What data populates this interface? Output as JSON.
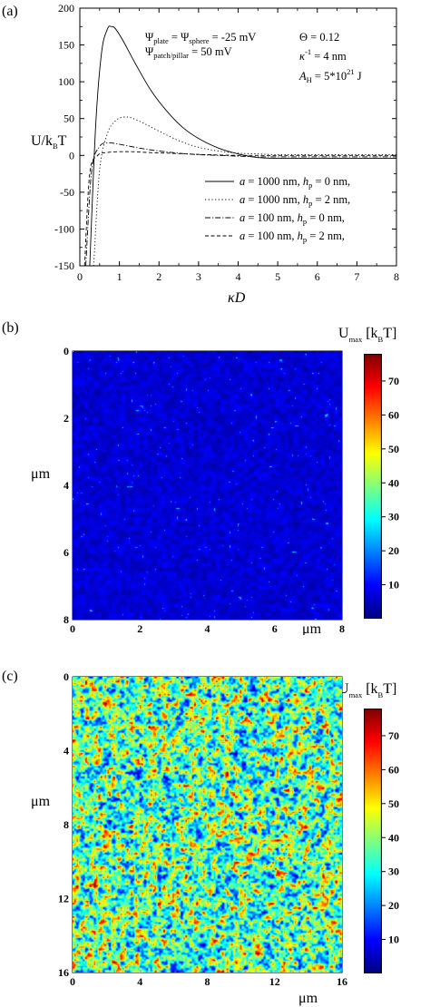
{
  "chart_data": [
    {
      "type": "line",
      "panel_label": "(a)",
      "xlabel_main": "κ",
      "xlabel_italic": "D",
      "ylabel_main": "U/k",
      "ylabel_sub": "B",
      "ylabel_end": "T",
      "xlim": [
        0,
        8
      ],
      "ylim": [
        -150,
        200
      ],
      "x_ticks": [
        "0",
        "1",
        "2",
        "3",
        "4",
        "5",
        "6",
        "7",
        "8"
      ],
      "y_ticks": [
        "200",
        "150",
        "100",
        "50",
        "0",
        "-50",
        "-100",
        "-150"
      ],
      "annotations": {
        "psi_line1_pre": "Ψ",
        "psi_line1_sub1": "plate",
        "psi_line1_mid": " = Ψ",
        "psi_line1_sub2": "sphere",
        "psi_line1_post": " = -25 mV",
        "psi_line2_pre": "Ψ",
        "psi_line2_sub": "patch/pillar",
        "psi_line2_post": " = 50 mV",
        "theta": "Θ = 0.12",
        "kappa_pre": "κ",
        "kappa_sup": "-1",
        "kappa_post": " = 4 nm",
        "ah_pre": "A",
        "ah_sub": "H",
        "ah_mid": " = 5*10",
        "ah_sup": "21",
        "ah_post": " J"
      },
      "series": [
        {
          "legend_a": "a",
          "legend_a_val": " = 1000 nm,  ",
          "legend_h": "h",
          "legend_hsub": "p",
          "legend_h_val": " = 0 nm,",
          "style": "solid",
          "x": [
            0.25,
            0.4,
            0.55,
            0.7,
            0.8,
            0.9,
            1.1,
            1.4,
            1.8,
            2.2,
            2.6,
            3.0,
            3.5,
            4.0,
            4.5,
            5.0,
            6.0,
            7.0,
            8.0
          ],
          "y": [
            -150,
            40,
            140,
            172,
            175,
            172,
            155,
            125,
            88,
            60,
            38,
            23,
            10,
            2,
            -3,
            -4,
            -4,
            -4,
            -4
          ]
        },
        {
          "legend_a": "a",
          "legend_a_val": " = 1000 nm,  ",
          "legend_h": "h",
          "legend_hsub": "p",
          "legend_h_val": " = 2 nm,",
          "style": "dotted",
          "x": [
            0.35,
            0.5,
            0.7,
            0.9,
            1.1,
            1.3,
            1.6,
            2.0,
            2.5,
            3.0,
            3.5,
            4.0,
            4.5,
            5.0,
            6.0,
            7.0,
            8.0
          ],
          "y": [
            -150,
            -20,
            30,
            47,
            52,
            51,
            44,
            33,
            20,
            11,
            6,
            3,
            2,
            1,
            1,
            1,
            1
          ]
        },
        {
          "legend_a": "a",
          "legend_a_val": " = 100  nm,  ",
          "legend_h": "h",
          "legend_hsub": "p",
          "legend_h_val": " = 0 nm,",
          "style": "dashdot",
          "x": [
            0.15,
            0.3,
            0.5,
            0.7,
            0.9,
            1.2,
            1.6,
            2.0,
            2.5,
            3.0,
            3.5,
            4.0,
            4.5,
            5.0,
            6.0,
            7.0,
            8.0
          ],
          "y": [
            -150,
            -20,
            12,
            17,
            16,
            13,
            9,
            6,
            3,
            1,
            0,
            -1,
            -2,
            -2,
            -2,
            -2,
            -2
          ]
        },
        {
          "legend_a": "a",
          "legend_a_val": " = 100  nm,  ",
          "legend_h": "h",
          "legend_hsub": "p",
          "legend_h_val": " = 2 nm,",
          "style": "dashed",
          "x": [
            0.12,
            0.25,
            0.45,
            0.7,
            1.0,
            1.3,
            1.7,
            2.2,
            2.7,
            3.2,
            4.0,
            5.0,
            6.0,
            7.0,
            8.0
          ],
          "y": [
            -150,
            -25,
            0,
            4,
            5,
            5,
            4,
            3,
            2,
            1,
            0,
            0,
            0,
            0,
            0
          ]
        }
      ]
    },
    {
      "type": "heatmap",
      "panel_label": "(b)",
      "colorbar_title_main": "U",
      "colorbar_title_sub": "max",
      "colorbar_title_post": " [k",
      "colorbar_title_sub2": "B",
      "colorbar_title_end": "T]",
      "colorbar_ticks": [
        "70",
        "60",
        "50",
        "40",
        "30",
        "20",
        "10"
      ],
      "colorbar_range": [
        0,
        78
      ],
      "x_ticks": [
        "0",
        "2",
        "4",
        "6",
        "8"
      ],
      "y_ticks": [
        "0",
        "2",
        "4",
        "6",
        "8"
      ],
      "xlabel": "μm",
      "ylabel": "μm",
      "xlim": [
        0,
        8
      ],
      "ylim": [
        0,
        8
      ],
      "typical_level": 5,
      "description_level": "mostly low values 0-10 with sparse peaks ~20"
    },
    {
      "type": "heatmap",
      "panel_label": "(c)",
      "colorbar_title_main": "U",
      "colorbar_title_sub": "max",
      "colorbar_title_post": " [k",
      "colorbar_title_sub2": "B",
      "colorbar_title_end": "T]",
      "colorbar_ticks": [
        "70",
        "60",
        "50",
        "40",
        "30",
        "20",
        "10"
      ],
      "colorbar_range": [
        0,
        78
      ],
      "x_ticks": [
        "0",
        "4",
        "8",
        "12",
        "16"
      ],
      "y_ticks": [
        "0",
        "4",
        "8",
        "12",
        "16"
      ],
      "xlabel": "μm",
      "ylabel": "μm",
      "xlim": [
        0,
        16
      ],
      "ylim": [
        0,
        16
      ],
      "typical_level": 30
    }
  ],
  "colors": {
    "jet_low": "#00008f",
    "jet_high": "#800000",
    "line": "#000000"
  }
}
